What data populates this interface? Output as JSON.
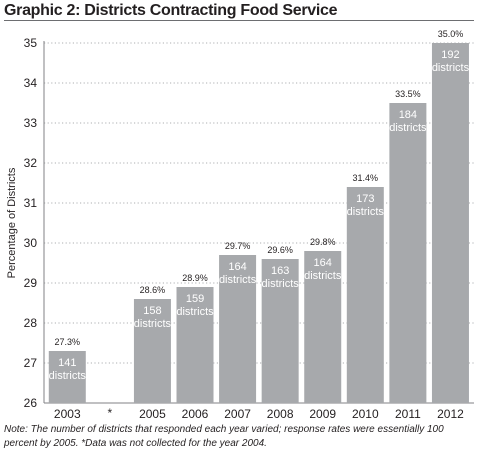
{
  "title": "Graphic 2: Districts Contracting Food Service",
  "note": "Note: The number of districts that responded each year varied; response rates were essentially 100 percent by 2005.  *Data was not collected for the year 2004.",
  "colors": {
    "bar": "#a7a9ac",
    "text": "#231f20",
    "grid": "#939598",
    "bar_text": "#ffffff"
  },
  "chart_data": {
    "type": "bar",
    "title": "Graphic 2: Districts Contracting Food Service",
    "ylabel": "Percentage of Districts",
    "xlabel": "",
    "ylim": [
      26,
      35
    ],
    "yticks": [
      26,
      27,
      28,
      29,
      30,
      31,
      32,
      33,
      34,
      35
    ],
    "grid": true,
    "categories": [
      "2003",
      "2005",
      "2006",
      "2007",
      "2008",
      "2009",
      "2010",
      "2011",
      "2012"
    ],
    "values": [
      27.3,
      28.6,
      28.9,
      29.7,
      29.6,
      29.8,
      31.4,
      33.5,
      35.0
    ],
    "value_labels": [
      "27.3%",
      "28.6%",
      "28.9%",
      "29.7%",
      "29.6%",
      "29.8%",
      "31.4%",
      "33.5%",
      "35.0%"
    ],
    "districts": [
      "141",
      "158",
      "159",
      "164",
      "163",
      "164",
      "173",
      "184",
      "192"
    ],
    "districts_unit": "districts",
    "gap_marker": "*"
  }
}
